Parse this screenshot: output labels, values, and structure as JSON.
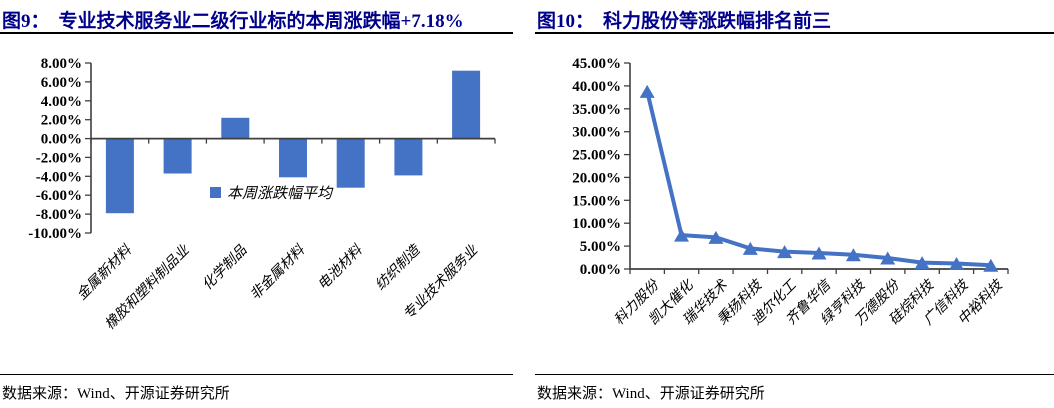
{
  "colors": {
    "accent": "#4472C4",
    "heading": "#00008B",
    "axis": "#3F3F3F",
    "rule": "#000000"
  },
  "figure9": {
    "label": "图9：",
    "title": "专业技术服务业二级行业标的本周涨跌幅+7.18%",
    "source": "数据来源：Wind、开源证券研究所",
    "chart_data": {
      "type": "bar",
      "title": "专业技术服务业二级行业标的本周涨跌幅",
      "categories": [
        "金属新材料",
        "橡胶和塑料制品业",
        "化学制品",
        "非金属材料",
        "电池材料",
        "纺织制造",
        "专业技术服务业"
      ],
      "values": [
        -7.9,
        -3.7,
        2.2,
        -4.1,
        -5.2,
        -3.9,
        7.18
      ],
      "ylim": [
        -10,
        8
      ],
      "ytick_step": 2,
      "tick_format": "0.00%",
      "grid": false,
      "legend": {
        "label": "本周涨跌幅平均",
        "position": "inside-center"
      }
    }
  },
  "figure10": {
    "label": "图10：",
    "title": "科力股份等涨跌幅排名前三",
    "source": "数据来源：Wind、开源证券研究所",
    "chart_data": {
      "type": "line",
      "title": "科力股份等涨跌幅排名前三",
      "categories": [
        "科力股份",
        "凯大催化",
        "瑞华技术",
        "秉扬科技",
        "迪尔化工",
        "齐鲁华信",
        "绿亨科技",
        "万德股份",
        "硅烷科技",
        "广信科技",
        "中裕科技"
      ],
      "values": [
        38.8,
        7.4,
        6.9,
        4.5,
        3.8,
        3.5,
        3.1,
        2.4,
        1.4,
        1.2,
        0.8
      ],
      "ylim": [
        0,
        45
      ],
      "ytick_step": 5,
      "tick_format": "0.00%",
      "grid": false,
      "marker": "triangle-up"
    }
  }
}
